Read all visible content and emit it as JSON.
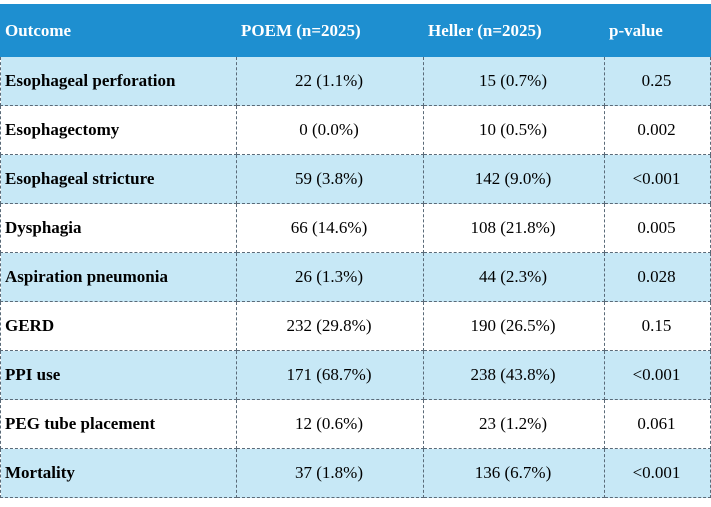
{
  "headers": [
    "Outcome",
    "POEM (n=2025)",
    "Heller (n=2025)",
    "p-value"
  ],
  "rows": [
    {
      "outcome": "Esophageal perforation",
      "poem": "22 (1.1%)",
      "heller": "15 (0.7%)",
      "p": "0.25"
    },
    {
      "outcome": "Esophagectomy",
      "poem": "0 (0.0%)",
      "heller": "10 (0.5%)",
      "p": "0.002"
    },
    {
      "outcome": "Esophageal stricture",
      "poem": "59 (3.8%)",
      "heller": "142 (9.0%)",
      "p": "<0.001"
    },
    {
      "outcome": "Dysphagia",
      "poem": "66 (14.6%)",
      "heller": "108 (21.8%)",
      "p": "0.005"
    },
    {
      "outcome": "Aspiration pneumonia",
      "poem": "26 (1.3%)",
      "heller": "44 (2.3%)",
      "p": "0.028"
    },
    {
      "outcome": "GERD",
      "poem": "232 (29.8%)",
      "heller": "190 (26.5%)",
      "p": "0.15"
    },
    {
      "outcome": "PPI use",
      "poem": "171 (68.7%)",
      "heller": "238 (43.8%)",
      "p": "<0.001"
    },
    {
      "outcome": "PEG tube placement",
      "poem": "12 (0.6%)",
      "heller": "23 (1.2%)",
      "p": "0.061"
    },
    {
      "outcome": "Mortality",
      "poem": "37 (1.8%)",
      "heller": "136 (6.7%)",
      "p": "<0.001"
    }
  ],
  "colors": {
    "header_bg": "#1e8fd0",
    "shaded_row": "#c7e8f6"
  }
}
